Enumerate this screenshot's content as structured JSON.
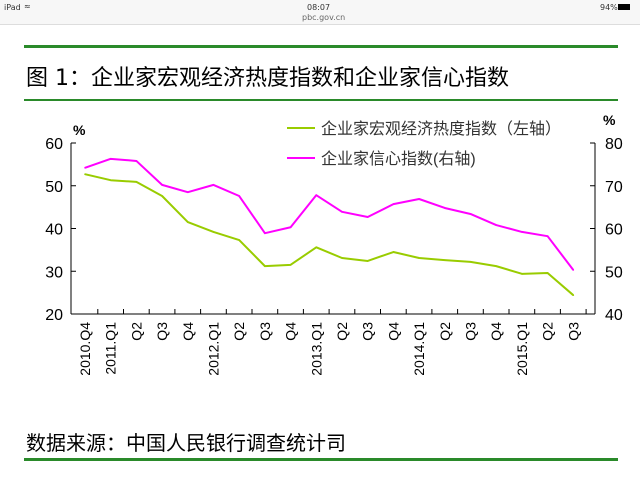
{
  "status": {
    "device": "iPad",
    "time": "08:07",
    "url": "pbc.gov.cn",
    "battery": "94%"
  },
  "title": "图 1：企业家宏观经济热度指数和企业家信心指数",
  "source": "数据来源：中国人民银行调查统计司",
  "chart_data": {
    "type": "line",
    "title": "图 1：企业家宏观经济热度指数和企业家信心指数",
    "categories": [
      "2010.Q4",
      "2011.Q1",
      "Q2",
      "Q3",
      "Q4",
      "2012.Q1",
      "Q2",
      "Q3",
      "Q4",
      "2013.Q1",
      "Q2",
      "Q3",
      "Q4",
      "2014.Q1",
      "Q2",
      "Q3",
      "Q4",
      "2015.Q1",
      "Q2",
      "Q3"
    ],
    "y_left": {
      "label": "%",
      "ylim": [
        20,
        60
      ],
      "ticks": [
        20,
        30,
        40,
        50,
        60
      ]
    },
    "y_right": {
      "label": "%",
      "ylim": [
        40,
        80
      ],
      "ticks": [
        40,
        50,
        60,
        70,
        80
      ]
    },
    "legend_placement": "top-right",
    "series": [
      {
        "name": "企业家宏观经济热度指数（左轴）",
        "axis": "left",
        "color": "#99cc00",
        "values": [
          52.7,
          51.3,
          50.9,
          47.6,
          41.5,
          39.2,
          37.3,
          31.2,
          31.5,
          35.6,
          33.1,
          32.4,
          34.5,
          33.1,
          32.6,
          32.2,
          31.2,
          29.4,
          29.6,
          24.4
        ]
      },
      {
        "name": "企业家信心指数(右轴)",
        "axis": "right",
        "color": "#ff00ff",
        "values": [
          74.2,
          76.3,
          75.8,
          70.2,
          68.5,
          70.2,
          67.6,
          58.9,
          60.3,
          67.8,
          63.9,
          62.7,
          65.7,
          66.9,
          64.8,
          63.4,
          60.8,
          59.2,
          58.2,
          50.3
        ]
      }
    ],
    "grid": false
  }
}
